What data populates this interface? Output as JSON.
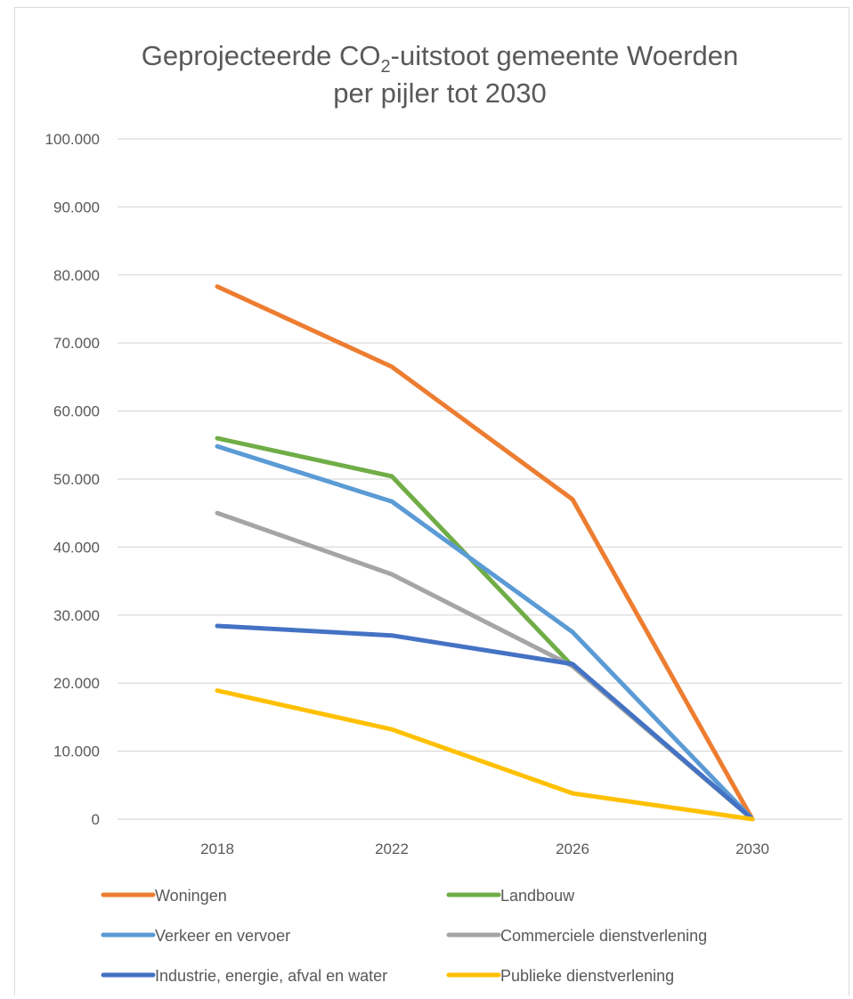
{
  "chart_data": {
    "type": "line",
    "title": {
      "line1_prefix": "Geprojecteerde CO",
      "line1_subscript": "2",
      "line1_suffix": "-uitstoot gemeente Woerden",
      "line2": "per pijler tot 2030"
    },
    "categories": [
      "2018",
      "2022",
      "2026",
      "2030"
    ],
    "y_ticks": [
      "0",
      "10.000",
      "20.000",
      "30.000",
      "40.000",
      "50.000",
      "60.000",
      "70.000",
      "80.000",
      "90.000",
      "100.000"
    ],
    "ylim": [
      0,
      100000
    ],
    "grid": true,
    "legend_position": "bottom",
    "series": [
      {
        "name": "Woningen",
        "color": "#ed7d31",
        "values": [
          78300,
          66500,
          47000,
          0
        ]
      },
      {
        "name": "Landbouw",
        "color": "#70ad47",
        "values": [
          56000,
          50400,
          22500,
          0
        ]
      },
      {
        "name": "Verkeer en vervoer",
        "color": "#5b9bd5",
        "values": [
          54800,
          46700,
          27500,
          0
        ]
      },
      {
        "name": "Commerciele dienstverlening",
        "color": "#a5a5a5",
        "values": [
          45000,
          36000,
          22500,
          0
        ]
      },
      {
        "name": "Industrie, energie, afval en water",
        "color": "#4472c4",
        "values": [
          28400,
          27000,
          22800,
          0
        ]
      },
      {
        "name": "Publieke dienstverlening",
        "color": "#ffc000",
        "values": [
          18900,
          13200,
          3800,
          0
        ]
      }
    ]
  }
}
